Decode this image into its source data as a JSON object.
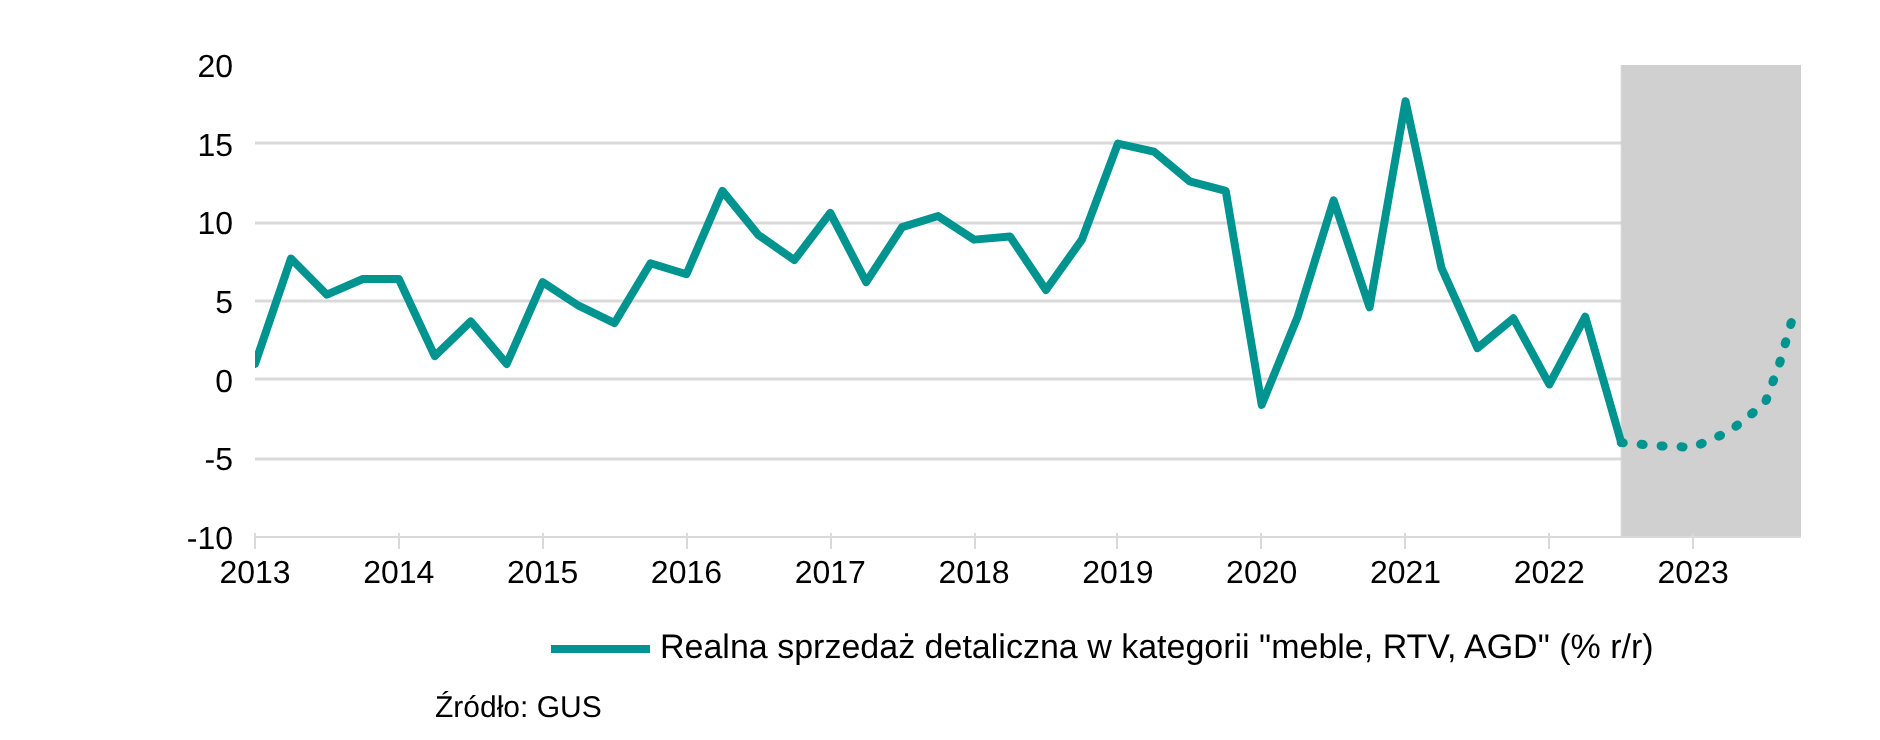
{
  "chart_data": {
    "type": "line",
    "xlim": [
      2013,
      2023.75
    ],
    "ylim": [
      -10,
      20
    ],
    "xticks": [
      2013,
      2014,
      2015,
      2016,
      2017,
      2018,
      2019,
      2020,
      2021,
      2022,
      2023
    ],
    "yticks": [
      -10,
      -5,
      0,
      5,
      10,
      15,
      20
    ],
    "grid": "y",
    "legend": "bottom",
    "series": [
      {
        "name": "Realna sprzedaż detaliczna w kategorii \"meble, RTV, AGD\" (% r/r)",
        "color": "#009490",
        "line_style": "solid",
        "x": [
          2013,
          2013.25,
          2013.5,
          2013.75,
          2014,
          2014.25,
          2014.5,
          2014.75,
          2015,
          2015.25,
          2015.5,
          2015.75,
          2016,
          2016.25,
          2016.5,
          2016.75,
          2017,
          2017.25,
          2017.5,
          2017.75,
          2018,
          2018.25,
          2018.5,
          2018.75,
          2019,
          2019.25,
          2019.5,
          2019.75,
          2020,
          2020.25,
          2020.5,
          2020.75,
          2021,
          2021.25,
          2021.5,
          2021.75,
          2022,
          2022.25,
          2022.5
        ],
        "values": [
          1.0,
          7.7,
          5.4,
          6.4,
          6.4,
          1.5,
          3.7,
          1.0,
          6.2,
          4.7,
          3.6,
          7.4,
          6.7,
          12.0,
          9.2,
          7.6,
          10.6,
          6.2,
          9.7,
          10.4,
          8.9,
          9.1,
          5.7,
          8.9,
          15.0,
          14.5,
          12.6,
          12.0,
          -1.6,
          4.0,
          11.4,
          4.6,
          17.7,
          7.1,
          2.0,
          3.9,
          -0.3,
          4.0,
          -4.0
        ]
      },
      {
        "color": "#009490",
        "line_style": "dotted",
        "x": [
          2022.5,
          2022.75,
          2023,
          2023.25,
          2023.5,
          2023.6,
          2023.7
        ],
        "values": [
          -4.0,
          -4.2,
          -4.3,
          -3.3,
          -1.5,
          1.0,
          4.2
        ]
      }
    ],
    "bands": [
      {
        "axis": "x",
        "from": 2022.5,
        "to": 2023.75,
        "color": "#d0d0d0"
      }
    ],
    "annotations": [
      "Źródło: GUS"
    ]
  }
}
